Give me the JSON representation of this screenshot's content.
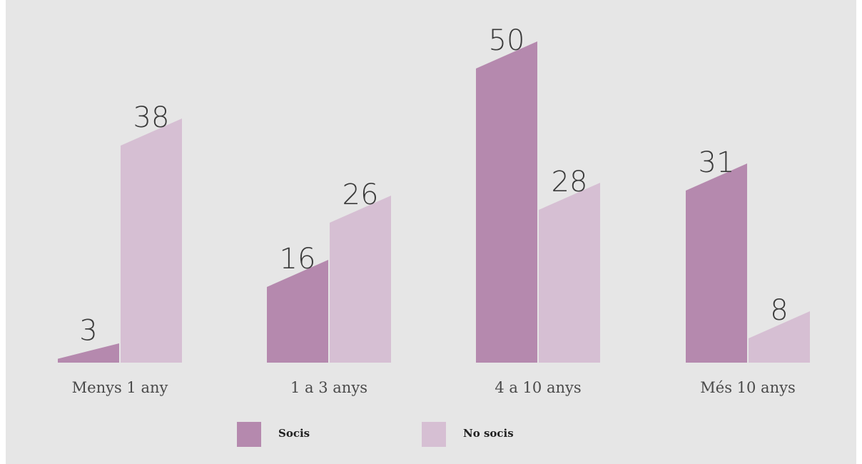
{
  "chart_data": {
    "type": "bar",
    "categories": [
      "Menys 1 any",
      "1 a 3 anys",
      "4 a 10 anys",
      "Més 10 anys"
    ],
    "series": [
      {
        "name": "Socis",
        "values": [
          3,
          16,
          50,
          31
        ],
        "color": "#b589ae"
      },
      {
        "name": "No socis",
        "values": [
          38,
          26,
          28,
          8
        ],
        "color": "#d6bfd3"
      }
    ],
    "ylim": [
      0,
      50
    ],
    "grid": false,
    "legend": "bottom"
  }
}
